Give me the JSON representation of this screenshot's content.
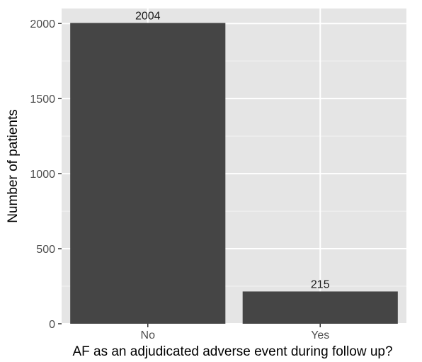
{
  "chart_data": {
    "type": "bar",
    "title": "",
    "xlabel": "AF as an adjudicated adverse event during follow up?",
    "ylabel": "Number of patients",
    "categories": [
      "No",
      "Yes"
    ],
    "values": [
      2004,
      215
    ],
    "data_labels": [
      "2004",
      "215"
    ],
    "y_ticks": [
      0,
      500,
      1000,
      1500,
      2000
    ],
    "y_tick_labels": [
      "0",
      "500",
      "1000",
      "1500",
      "2000"
    ],
    "ylim": [
      0,
      2100
    ],
    "grid": true,
    "legend": "none",
    "colors": {
      "bar": "#454545",
      "panel": "#e5e5e5",
      "grid_major": "#ffffff",
      "grid_minor": "#f2f2f2",
      "tick": "#333333"
    }
  }
}
